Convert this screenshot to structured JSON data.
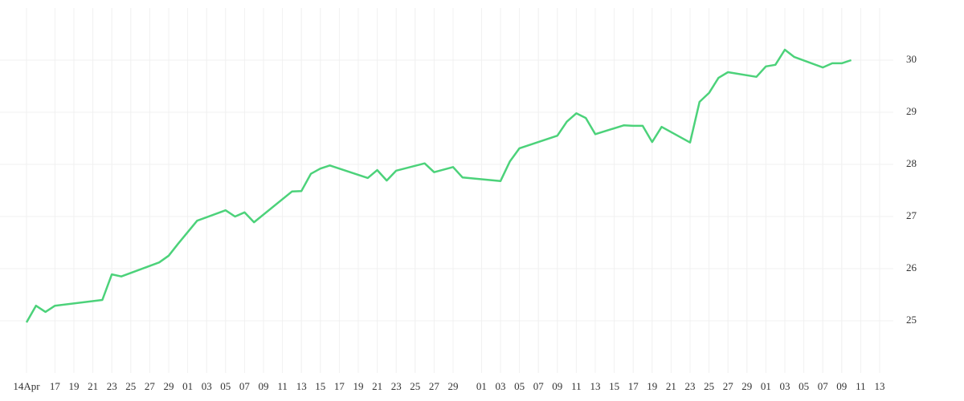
{
  "chart_data": {
    "type": "line",
    "color": "#4cd27a",
    "grid": true,
    "x": [
      "04-14",
      "04-15",
      "04-16",
      "04-17",
      "04-22",
      "04-23",
      "04-24",
      "04-28",
      "04-29",
      "04-30",
      "05-02",
      "05-05",
      "05-06",
      "05-07",
      "05-08",
      "05-12",
      "05-13",
      "05-14",
      "05-15",
      "05-16",
      "05-20",
      "05-21",
      "05-22",
      "05-23",
      "05-26",
      "05-27",
      "05-29",
      "05-30",
      "06-03",
      "06-04",
      "06-05",
      "06-09",
      "06-10",
      "06-11",
      "06-12",
      "06-13",
      "06-16",
      "06-17",
      "06-18",
      "06-19",
      "06-20",
      "06-23",
      "06-24",
      "06-25",
      "06-26",
      "06-27",
      "06-30",
      "07-01",
      "07-02",
      "07-03",
      "07-04",
      "07-07",
      "07-08",
      "07-09",
      "07-10"
    ],
    "values": [
      24.97,
      25.29,
      25.17,
      25.29,
      25.4,
      25.89,
      25.85,
      26.12,
      26.25,
      26.48,
      26.92,
      27.12,
      27.0,
      27.08,
      26.89,
      27.48,
      27.49,
      27.82,
      27.92,
      27.98,
      27.74,
      27.89,
      27.69,
      27.88,
      28.02,
      27.85,
      27.95,
      27.75,
      27.68,
      28.06,
      28.31,
      28.55,
      28.82,
      28.98,
      28.89,
      28.58,
      28.75,
      28.74,
      28.74,
      28.43,
      28.72,
      28.42,
      29.2,
      29.37,
      29.66,
      29.77,
      29.68,
      29.88,
      29.91,
      30.2,
      30.06,
      29.86,
      29.94,
      29.94,
      30.0
    ],
    "ylim": [
      24,
      31
    ],
    "yticks": [
      25,
      26,
      27,
      28,
      29,
      30
    ],
    "xticks": [
      {
        "value": "04-14",
        "label": "14Apr"
      },
      {
        "value": "04-17",
        "label": "17"
      },
      {
        "value": "04-19",
        "label": "19"
      },
      {
        "value": "04-21",
        "label": "21"
      },
      {
        "value": "04-23",
        "label": "23"
      },
      {
        "value": "04-25",
        "label": "25"
      },
      {
        "value": "04-27",
        "label": "27"
      },
      {
        "value": "04-29",
        "label": "29"
      },
      {
        "value": "05-01",
        "label": "01"
      },
      {
        "value": "05-03",
        "label": "03"
      },
      {
        "value": "05-05",
        "label": "05"
      },
      {
        "value": "05-07",
        "label": "07"
      },
      {
        "value": "05-09",
        "label": "09"
      },
      {
        "value": "05-11",
        "label": "11"
      },
      {
        "value": "05-13",
        "label": "13"
      },
      {
        "value": "05-15",
        "label": "15"
      },
      {
        "value": "05-17",
        "label": "17"
      },
      {
        "value": "05-19",
        "label": "19"
      },
      {
        "value": "05-21",
        "label": "21"
      },
      {
        "value": "05-23",
        "label": "23"
      },
      {
        "value": "05-25",
        "label": "25"
      },
      {
        "value": "05-27",
        "label": "27"
      },
      {
        "value": "05-29",
        "label": "29"
      },
      {
        "value": "06-01",
        "label": "01"
      },
      {
        "value": "06-03",
        "label": "03"
      },
      {
        "value": "06-05",
        "label": "05"
      },
      {
        "value": "06-07",
        "label": "07"
      },
      {
        "value": "06-09",
        "label": "09"
      },
      {
        "value": "06-11",
        "label": "11"
      },
      {
        "value": "06-13",
        "label": "13"
      },
      {
        "value": "06-15",
        "label": "15"
      },
      {
        "value": "06-17",
        "label": "17"
      },
      {
        "value": "06-19",
        "label": "19"
      },
      {
        "value": "06-21",
        "label": "21"
      },
      {
        "value": "06-23",
        "label": "23"
      },
      {
        "value": "06-25",
        "label": "25"
      },
      {
        "value": "06-27",
        "label": "27"
      },
      {
        "value": "06-29",
        "label": "29"
      },
      {
        "value": "07-01",
        "label": "01"
      },
      {
        "value": "07-03",
        "label": "03"
      },
      {
        "value": "07-05",
        "label": "05"
      },
      {
        "value": "07-07",
        "label": "07"
      },
      {
        "value": "07-09",
        "label": "09"
      },
      {
        "value": "07-11",
        "label": "11"
      },
      {
        "value": "07-13",
        "label": "13"
      }
    ]
  }
}
